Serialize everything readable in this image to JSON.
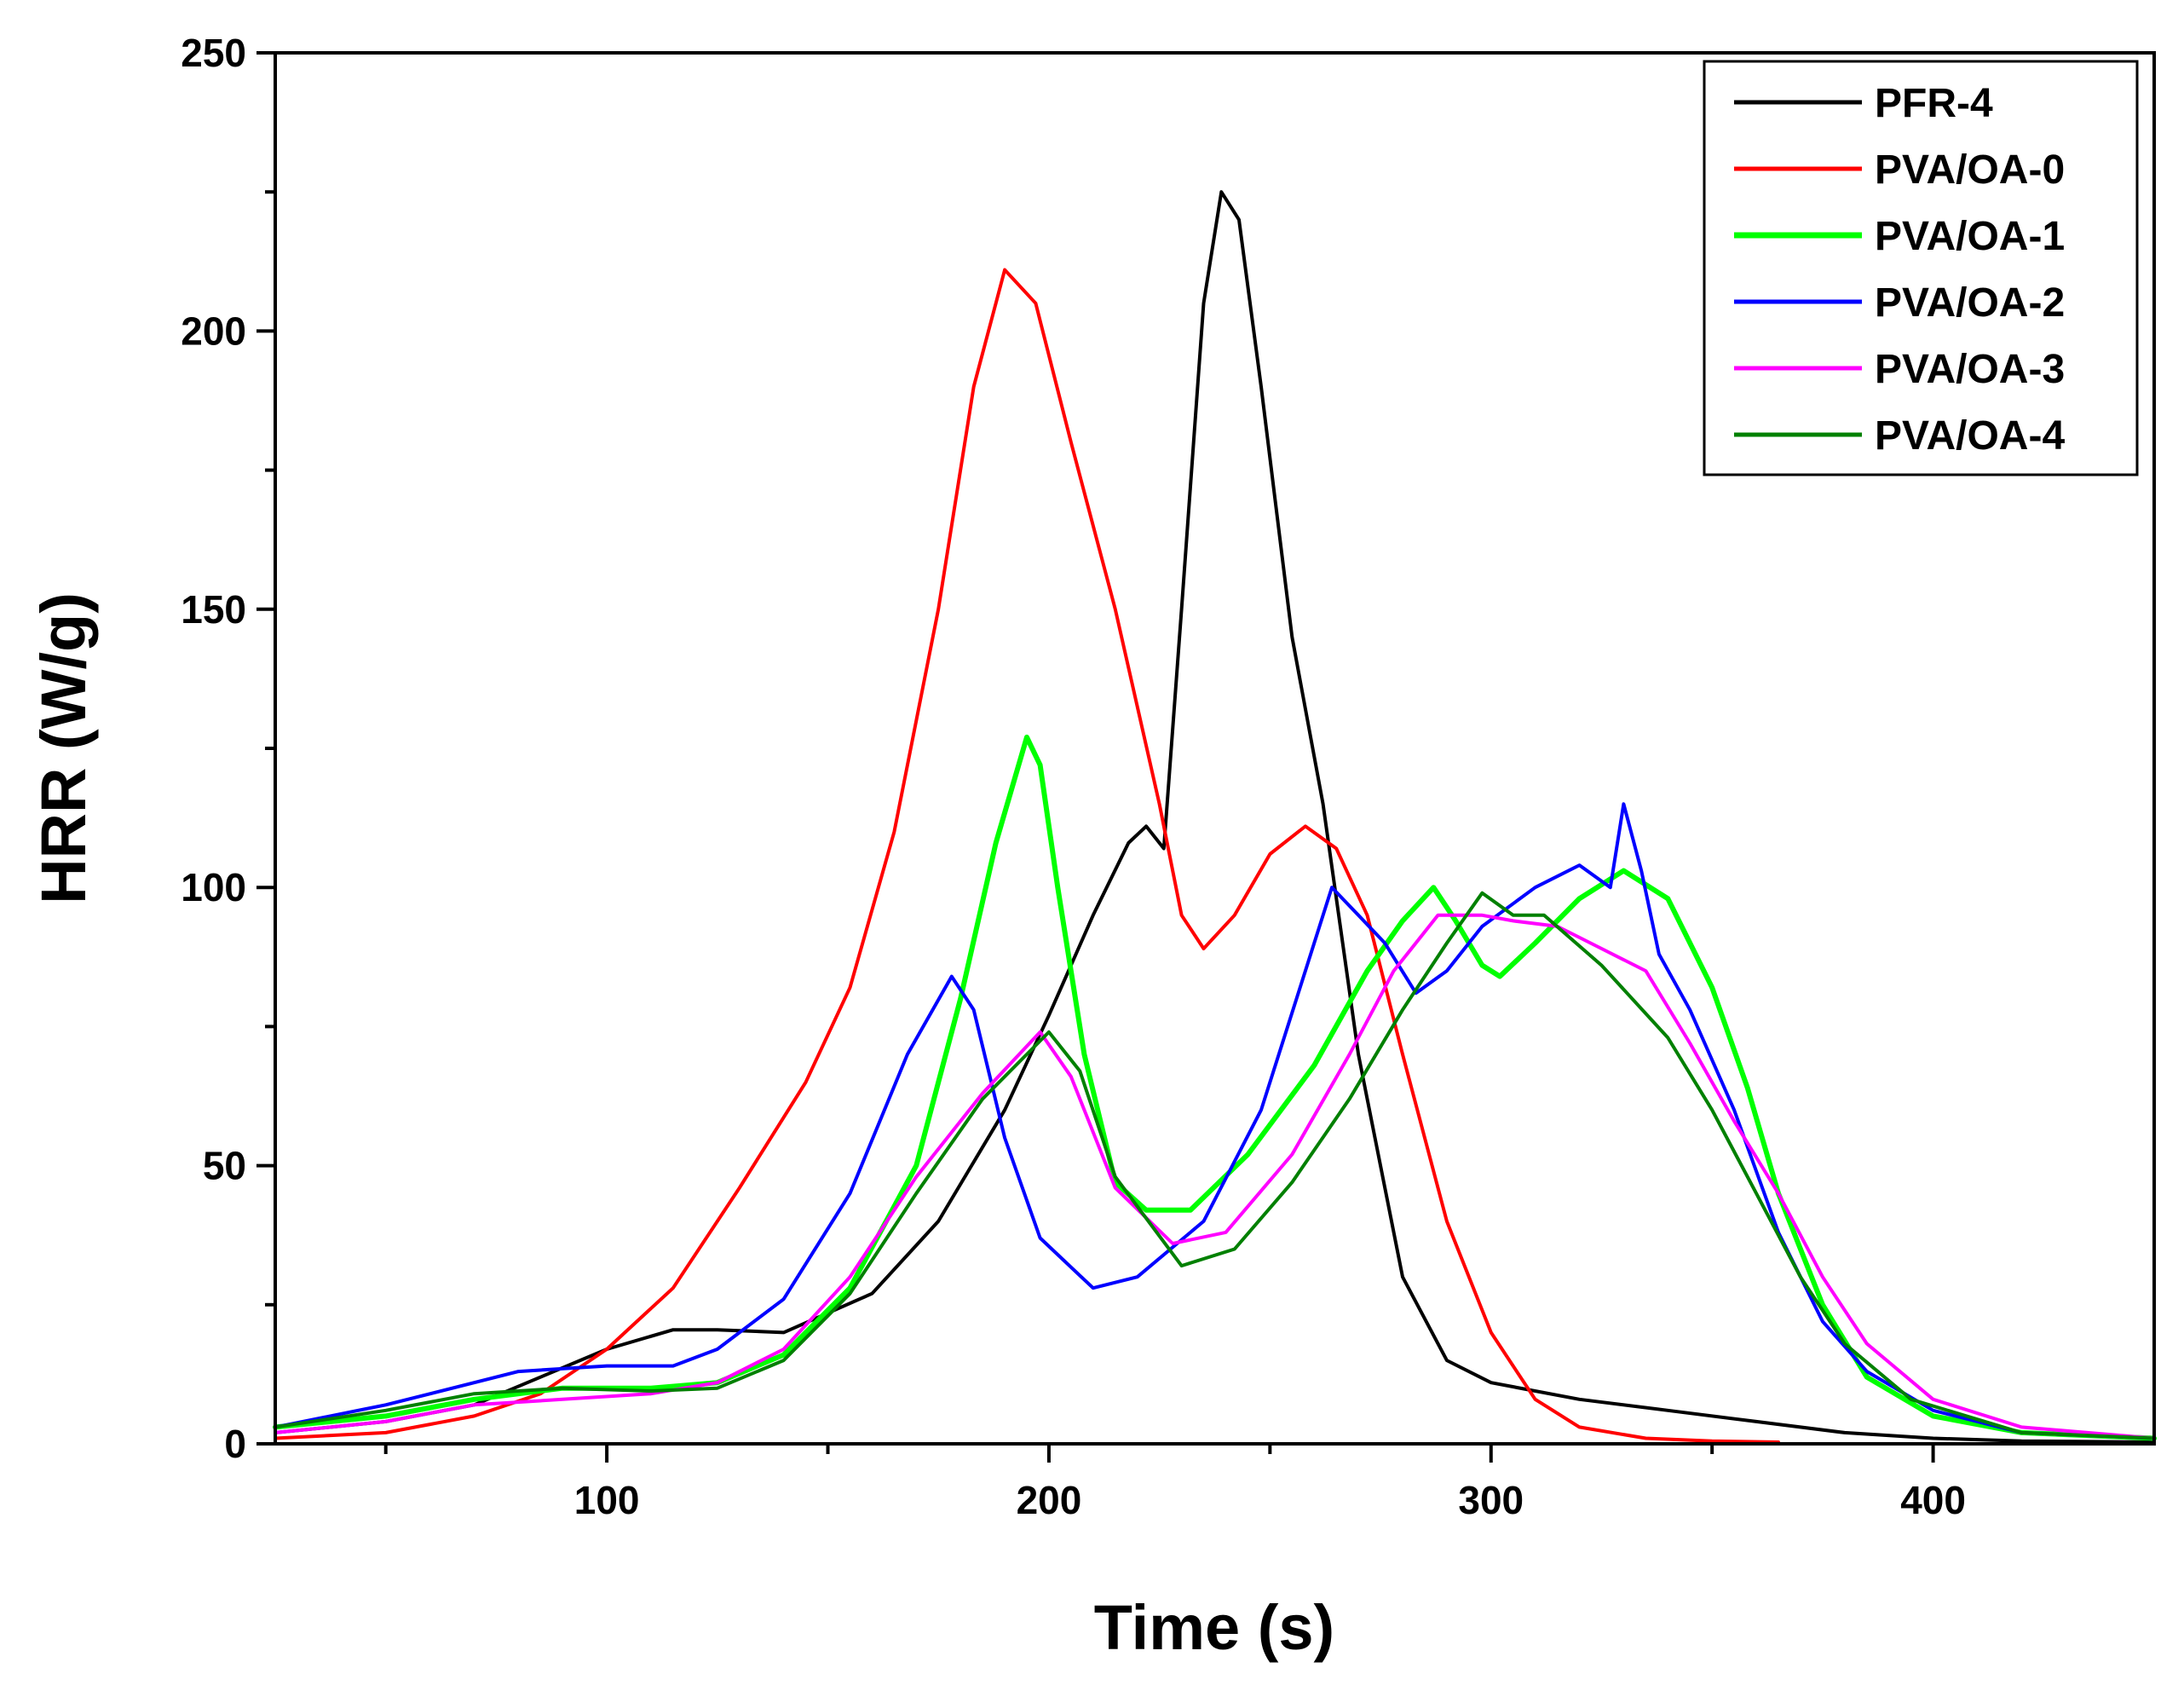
{
  "chart_data": {
    "type": "line",
    "title": "",
    "xlabel": "Time (s)",
    "ylabel": "HRR (W/g)",
    "xlim": [
      25,
      450
    ],
    "ylim": [
      0,
      250
    ],
    "x_major_ticks": [
      100,
      200,
      300,
      400
    ],
    "x_minor_ticks": [
      50,
      150,
      250,
      350
    ],
    "y_major_ticks": [
      0,
      50,
      100,
      150,
      200,
      250
    ],
    "legend_position": "top-right",
    "grid": false,
    "series": [
      {
        "name": "PFR-4",
        "color": "#000000",
        "points": [
          [
            25,
            2
          ],
          [
            50,
            4
          ],
          [
            70,
            7
          ],
          [
            85,
            12
          ],
          [
            100,
            17
          ],
          [
            115,
            20.5
          ],
          [
            125,
            20.5
          ],
          [
            140,
            20
          ],
          [
            160,
            27
          ],
          [
            175,
            40
          ],
          [
            190,
            60
          ],
          [
            200,
            77
          ],
          [
            210,
            95
          ],
          [
            218,
            108
          ],
          [
            222,
            111
          ],
          [
            226,
            107
          ],
          [
            230,
            150
          ],
          [
            235,
            205
          ],
          [
            239,
            225
          ],
          [
            243,
            220
          ],
          [
            248,
            190
          ],
          [
            255,
            145
          ],
          [
            262,
            115
          ],
          [
            270,
            70
          ],
          [
            280,
            30
          ],
          [
            290,
            15
          ],
          [
            300,
            11
          ],
          [
            320,
            8
          ],
          [
            340,
            6
          ],
          [
            360,
            4
          ],
          [
            380,
            2
          ],
          [
            400,
            1
          ],
          [
            420,
            0.5
          ],
          [
            450,
            0.3
          ]
        ]
      },
      {
        "name": "PVA/OA-0",
        "color": "#ff0000",
        "points": [
          [
            25,
            1
          ],
          [
            50,
            2
          ],
          [
            70,
            5
          ],
          [
            85,
            9
          ],
          [
            100,
            17
          ],
          [
            115,
            28
          ],
          [
            130,
            46
          ],
          [
            145,
            65
          ],
          [
            155,
            82
          ],
          [
            165,
            110
          ],
          [
            175,
            150
          ],
          [
            183,
            190
          ],
          [
            190,
            211
          ],
          [
            197,
            205
          ],
          [
            205,
            180
          ],
          [
            215,
            150
          ],
          [
            225,
            115
          ],
          [
            230,
            95
          ],
          [
            235,
            89
          ],
          [
            242,
            95
          ],
          [
            250,
            106
          ],
          [
            258,
            111
          ],
          [
            265,
            107
          ],
          [
            272,
            95
          ],
          [
            280,
            70
          ],
          [
            290,
            40
          ],
          [
            300,
            20
          ],
          [
            310,
            8
          ],
          [
            320,
            3
          ],
          [
            335,
            1
          ],
          [
            350,
            0.5
          ],
          [
            365,
            0.3
          ]
        ]
      },
      {
        "name": "PVA/OA-1",
        "color": "#00ff00",
        "points": [
          [
            25,
            3
          ],
          [
            50,
            5
          ],
          [
            70,
            8
          ],
          [
            90,
            10
          ],
          [
            110,
            10
          ],
          [
            125,
            11
          ],
          [
            140,
            16
          ],
          [
            155,
            28
          ],
          [
            170,
            50
          ],
          [
            180,
            80
          ],
          [
            188,
            108
          ],
          [
            195,
            127
          ],
          [
            198,
            122
          ],
          [
            202,
            100
          ],
          [
            208,
            70
          ],
          [
            215,
            47
          ],
          [
            222,
            42
          ],
          [
            232,
            42
          ],
          [
            245,
            52
          ],
          [
            260,
            68
          ],
          [
            272,
            85
          ],
          [
            280,
            94
          ],
          [
            287,
            100
          ],
          [
            292,
            94
          ],
          [
            298,
            86
          ],
          [
            302,
            84
          ],
          [
            310,
            90
          ],
          [
            320,
            98
          ],
          [
            330,
            103
          ],
          [
            340,
            98
          ],
          [
            350,
            82
          ],
          [
            358,
            64
          ],
          [
            365,
            45
          ],
          [
            375,
            25
          ],
          [
            385,
            12
          ],
          [
            400,
            5
          ],
          [
            420,
            2
          ],
          [
            450,
            1
          ]
        ]
      },
      {
        "name": "PVA/OA-2",
        "color": "#0000ff",
        "points": [
          [
            25,
            3
          ],
          [
            50,
            7
          ],
          [
            70,
            11
          ],
          [
            80,
            13
          ],
          [
            100,
            14
          ],
          [
            115,
            14
          ],
          [
            125,
            17
          ],
          [
            140,
            26
          ],
          [
            155,
            45
          ],
          [
            168,
            70
          ],
          [
            178,
            84
          ],
          [
            183,
            78
          ],
          [
            190,
            55
          ],
          [
            198,
            37
          ],
          [
            210,
            28
          ],
          [
            220,
            30
          ],
          [
            235,
            40
          ],
          [
            248,
            60
          ],
          [
            258,
            85
          ],
          [
            264,
            100
          ],
          [
            270,
            95
          ],
          [
            276,
            90
          ],
          [
            283,
            81
          ],
          [
            290,
            85
          ],
          [
            298,
            93
          ],
          [
            310,
            100
          ],
          [
            320,
            104
          ],
          [
            327,
            100
          ],
          [
            330,
            115
          ],
          [
            334,
            103
          ],
          [
            338,
            88
          ],
          [
            345,
            78
          ],
          [
            355,
            60
          ],
          [
            365,
            38
          ],
          [
            375,
            22
          ],
          [
            385,
            13
          ],
          [
            400,
            6
          ],
          [
            420,
            2
          ],
          [
            450,
            1
          ]
        ]
      },
      {
        "name": "PVA/OA-3",
        "color": "#ff00ff",
        "points": [
          [
            25,
            2
          ],
          [
            50,
            4
          ],
          [
            70,
            7
          ],
          [
            90,
            8
          ],
          [
            110,
            9
          ],
          [
            125,
            11
          ],
          [
            140,
            17
          ],
          [
            155,
            30
          ],
          [
            170,
            48
          ],
          [
            185,
            63
          ],
          [
            198,
            74
          ],
          [
            205,
            66
          ],
          [
            215,
            46
          ],
          [
            228,
            36
          ],
          [
            240,
            38
          ],
          [
            255,
            52
          ],
          [
            268,
            70
          ],
          [
            278,
            85
          ],
          [
            288,
            95
          ],
          [
            298,
            95
          ],
          [
            305,
            94
          ],
          [
            315,
            93
          ],
          [
            325,
            89
          ],
          [
            335,
            85
          ],
          [
            345,
            72
          ],
          [
            355,
            58
          ],
          [
            365,
            45
          ],
          [
            375,
            30
          ],
          [
            385,
            18
          ],
          [
            400,
            8
          ],
          [
            420,
            3
          ],
          [
            450,
            1
          ]
        ]
      },
      {
        "name": "PVA/OA-4",
        "color": "#008000",
        "points": [
          [
            25,
            3
          ],
          [
            50,
            6
          ],
          [
            70,
            9
          ],
          [
            90,
            10
          ],
          [
            110,
            9.5
          ],
          [
            125,
            10
          ],
          [
            140,
            15
          ],
          [
            155,
            27
          ],
          [
            170,
            45
          ],
          [
            185,
            62
          ],
          [
            200,
            74
          ],
          [
            207,
            67
          ],
          [
            215,
            48
          ],
          [
            230,
            32
          ],
          [
            242,
            35
          ],
          [
            255,
            47
          ],
          [
            268,
            62
          ],
          [
            280,
            78
          ],
          [
            290,
            90
          ],
          [
            298,
            99
          ],
          [
            305,
            95
          ],
          [
            312,
            95
          ],
          [
            325,
            86
          ],
          [
            340,
            73
          ],
          [
            350,
            60
          ],
          [
            360,
            45
          ],
          [
            370,
            30
          ],
          [
            380,
            18
          ],
          [
            395,
            8
          ],
          [
            420,
            2
          ],
          [
            450,
            1
          ]
        ]
      }
    ]
  }
}
